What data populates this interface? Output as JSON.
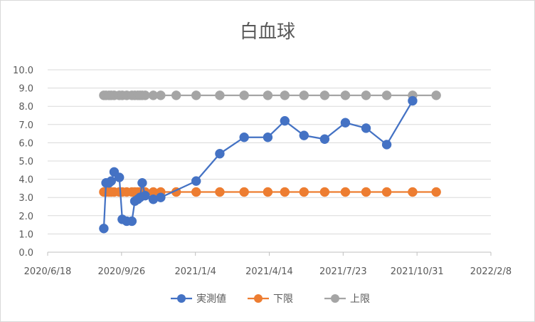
{
  "chart_data": {
    "type": "scatter",
    "title": "白血球",
    "xlabel": "",
    "ylabel": "",
    "x_axis": {
      "min": "2020-06-18",
      "max": "2022-02-08",
      "ticks": [
        "2020/6/18",
        "2020/9/26",
        "2021/1/4",
        "2021/4/14",
        "2021/7/23",
        "2021/10/31",
        "2022/2/8"
      ]
    },
    "y_axis": {
      "min": 0,
      "max": 10,
      "step": 1,
      "ticks": [
        "0.0",
        "1.0",
        "2.0",
        "3.0",
        "4.0",
        "5.0",
        "6.0",
        "7.0",
        "8.0",
        "9.0",
        "10.0"
      ]
    },
    "grid": "horizontal",
    "legend_position": "bottom",
    "series": [
      {
        "name": "実測値",
        "color": "#4472C4",
        "x": [
          "2020-09-02",
          "2020-09-05",
          "2020-09-09",
          "2020-09-12",
          "2020-09-16",
          "2020-09-23",
          "2020-09-27",
          "2020-10-03",
          "2020-10-10",
          "2020-10-14",
          "2020-10-18",
          "2020-10-21",
          "2020-10-24",
          "2020-10-28",
          "2020-11-08",
          "2020-11-18",
          "2021-01-05",
          "2021-02-06",
          "2021-03-11",
          "2021-04-12",
          "2021-05-05",
          "2021-05-31",
          "2021-06-28",
          "2021-07-26",
          "2021-08-23",
          "2021-09-20",
          "2021-10-25",
          "2021-11-26"
        ],
        "y": [
          1.3,
          3.8,
          3.8,
          3.9,
          4.4,
          4.1,
          1.8,
          1.7,
          1.7,
          2.8,
          2.9,
          3.0,
          3.8,
          3.1,
          2.9,
          3.0,
          3.9,
          5.4,
          6.3,
          6.3,
          7.2,
          6.4,
          6.2,
          7.1,
          6.8,
          5.9,
          8.3,
          null
        ]
      },
      {
        "name": "下限",
        "color": "#ED7D31",
        "x": [
          "2020-09-02",
          "2020-09-05",
          "2020-09-09",
          "2020-09-12",
          "2020-09-16",
          "2020-09-23",
          "2020-09-27",
          "2020-10-03",
          "2020-10-10",
          "2020-10-14",
          "2020-10-18",
          "2020-10-21",
          "2020-10-24",
          "2020-10-28",
          "2020-11-08",
          "2020-11-18",
          "2020-12-09",
          "2021-01-05",
          "2021-02-06",
          "2021-03-11",
          "2021-04-12",
          "2021-05-05",
          "2021-05-31",
          "2021-06-28",
          "2021-07-26",
          "2021-08-23",
          "2021-09-20",
          "2021-10-25",
          "2021-11-26"
        ],
        "y": [
          3.3,
          3.3,
          3.3,
          3.3,
          3.3,
          3.3,
          3.3,
          3.3,
          3.3,
          3.3,
          3.3,
          3.3,
          3.3,
          3.3,
          3.3,
          3.3,
          3.3,
          3.3,
          3.3,
          3.3,
          3.3,
          3.3,
          3.3,
          3.3,
          3.3,
          3.3,
          3.3,
          3.3,
          3.3
        ]
      },
      {
        "name": "上限",
        "color": "#A5A5A5",
        "x": [
          "2020-09-02",
          "2020-09-05",
          "2020-09-09",
          "2020-09-12",
          "2020-09-16",
          "2020-09-23",
          "2020-09-27",
          "2020-10-03",
          "2020-10-10",
          "2020-10-14",
          "2020-10-18",
          "2020-10-21",
          "2020-10-24",
          "2020-10-28",
          "2020-11-08",
          "2020-11-18",
          "2020-12-09",
          "2021-01-05",
          "2021-02-06",
          "2021-03-11",
          "2021-04-12",
          "2021-05-05",
          "2021-05-31",
          "2021-06-28",
          "2021-07-26",
          "2021-08-23",
          "2021-09-20",
          "2021-10-25",
          "2021-11-26"
        ],
        "y": [
          8.6,
          8.6,
          8.6,
          8.6,
          8.6,
          8.6,
          8.6,
          8.6,
          8.6,
          8.6,
          8.6,
          8.6,
          8.6,
          8.6,
          8.6,
          8.6,
          8.6,
          8.6,
          8.6,
          8.6,
          8.6,
          8.6,
          8.6,
          8.6,
          8.6,
          8.6,
          8.6,
          8.6,
          8.6
        ]
      }
    ]
  }
}
